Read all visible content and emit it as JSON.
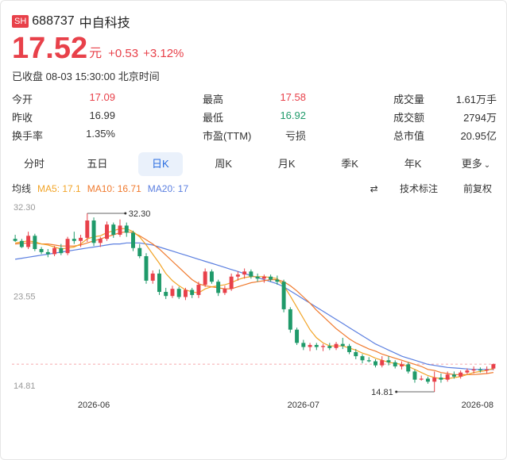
{
  "header": {
    "market_badge": "SH",
    "code": "688737",
    "name": "中自科技"
  },
  "quote": {
    "price": "17.52",
    "unit": "元",
    "change": "+0.53",
    "change_pct": "+3.12%",
    "status": "已收盘 08-03 15:30:00 北京时间"
  },
  "stats": [
    [
      {
        "label": "今开",
        "value": "17.09",
        "color": "red"
      },
      {
        "label": "最高",
        "value": "17.58",
        "color": "red"
      },
      {
        "label": "成交量",
        "value": "1.61万手",
        "color": ""
      }
    ],
    [
      {
        "label": "昨收",
        "value": "16.99",
        "color": ""
      },
      {
        "label": "最低",
        "value": "16.92",
        "color": "green"
      },
      {
        "label": "成交额",
        "value": "2794万",
        "color": ""
      }
    ],
    [
      {
        "label": "换手率",
        "value": "1.35%",
        "color": ""
      },
      {
        "label": "市盈(TTM)",
        "value": "亏损",
        "color": ""
      },
      {
        "label": "总市值",
        "value": "20.95亿",
        "color": ""
      }
    ]
  ],
  "tabs": [
    "分时",
    "五日",
    "日K",
    "周K",
    "月K",
    "季K",
    "年K",
    "更多"
  ],
  "active_tab": "日K",
  "ma": {
    "title": "均线",
    "ma5": "MA5: 17.1",
    "ma10": "MA10: 16.71",
    "ma20": "MA20: 17",
    "indicator": "技术标注",
    "adjust": "前复权"
  },
  "colors": {
    "up": "#e8414a",
    "down": "#1f9a6a",
    "ma5": "#f2a427",
    "ma10": "#f07a2e",
    "ma20": "#5b7fe0"
  },
  "chart_data": {
    "type": "candlestick",
    "y_ticks": [
      "32.30",
      "23.55",
      "14.81"
    ],
    "x_ticks": [
      "2026-06",
      "2026-07",
      "2026-08"
    ],
    "annotations": {
      "high_label": "32.30",
      "low_label": "14.81",
      "last_close": 17.52
    },
    "candles": [
      [
        29.8,
        30.2,
        29.5,
        29.6
      ],
      [
        29.6,
        29.8,
        28.9,
        29.0
      ],
      [
        29.0,
        30.5,
        28.8,
        30.1
      ],
      [
        30.1,
        30.3,
        28.6,
        28.8
      ],
      [
        28.8,
        29.0,
        28.3,
        28.5
      ],
      [
        28.5,
        28.8,
        28.0,
        28.3
      ],
      [
        28.3,
        29.1,
        28.1,
        28.9
      ],
      [
        28.9,
        29.3,
        28.2,
        28.4
      ],
      [
        28.4,
        30.0,
        28.2,
        29.8
      ],
      [
        29.8,
        30.5,
        29.3,
        29.6
      ],
      [
        29.6,
        30.2,
        29.0,
        29.9
      ],
      [
        29.9,
        32.3,
        29.5,
        31.6
      ],
      [
        31.6,
        31.9,
        29.1,
        29.4
      ],
      [
        29.4,
        30.0,
        29.0,
        29.8
      ],
      [
        29.8,
        31.5,
        29.6,
        31.2
      ],
      [
        31.2,
        31.4,
        29.9,
        30.2
      ],
      [
        30.2,
        31.7,
        30.0,
        31.1
      ],
      [
        31.1,
        31.4,
        30.0,
        30.4
      ],
      [
        30.4,
        30.6,
        28.6,
        28.9
      ],
      [
        28.9,
        29.3,
        27.9,
        28.1
      ],
      [
        28.1,
        28.4,
        25.4,
        25.7
      ],
      [
        25.7,
        26.7,
        25.4,
        26.4
      ],
      [
        26.4,
        26.8,
        24.3,
        24.6
      ],
      [
        24.6,
        25.0,
        23.9,
        24.2
      ],
      [
        24.2,
        25.2,
        24.0,
        24.9
      ],
      [
        24.9,
        25.1,
        23.9,
        24.1
      ],
      [
        24.1,
        25.0,
        23.8,
        24.8
      ],
      [
        24.8,
        25.0,
        24.0,
        24.3
      ],
      [
        24.3,
        25.6,
        24.0,
        25.3
      ],
      [
        25.3,
        26.9,
        25.1,
        26.6
      ],
      [
        26.6,
        26.8,
        25.4,
        25.6
      ],
      [
        25.6,
        25.8,
        24.2,
        24.5
      ],
      [
        24.5,
        25.2,
        24.3,
        24.9
      ],
      [
        24.9,
        26.4,
        24.7,
        26.1
      ],
      [
        26.1,
        26.6,
        25.7,
        26.3
      ],
      [
        26.3,
        26.9,
        25.9,
        26.6
      ],
      [
        26.6,
        26.8,
        25.9,
        26.1
      ],
      [
        26.1,
        26.4,
        25.6,
        25.9
      ],
      [
        25.9,
        26.3,
        25.5,
        26.1
      ],
      [
        26.1,
        26.3,
        25.6,
        25.8
      ],
      [
        25.8,
        26.2,
        25.3,
        25.6
      ],
      [
        25.6,
        25.8,
        22.6,
        22.9
      ],
      [
        22.9,
        23.1,
        20.6,
        20.9
      ],
      [
        20.9,
        21.1,
        19.4,
        19.6
      ],
      [
        19.6,
        19.9,
        18.9,
        19.2
      ],
      [
        19.2,
        19.6,
        18.8,
        19.4
      ],
      [
        19.4,
        19.6,
        18.9,
        19.2
      ],
      [
        19.2,
        19.5,
        18.8,
        19.3
      ],
      [
        19.3,
        19.6,
        18.9,
        19.1
      ],
      [
        19.1,
        19.7,
        18.9,
        19.5
      ],
      [
        19.5,
        20.1,
        19.0,
        19.3
      ],
      [
        19.3,
        19.5,
        18.5,
        18.7
      ],
      [
        18.7,
        19.0,
        18.0,
        18.3
      ],
      [
        18.3,
        18.5,
        17.6,
        17.9
      ],
      [
        17.9,
        18.2,
        17.7,
        17.8
      ],
      [
        17.8,
        18.0,
        17.2,
        17.4
      ],
      [
        17.4,
        18.3,
        17.2,
        17.9
      ],
      [
        17.9,
        18.3,
        17.4,
        17.7
      ],
      [
        17.7,
        17.9,
        17.1,
        17.3
      ],
      [
        17.3,
        17.8,
        17.0,
        17.5
      ],
      [
        17.5,
        17.7,
        16.6,
        16.8
      ],
      [
        16.8,
        17.0,
        15.7,
        16.0
      ],
      [
        16.0,
        16.4,
        15.9,
        16.1
      ],
      [
        16.1,
        16.3,
        15.6,
        15.8
      ],
      [
        15.8,
        16.8,
        14.81,
        16.2
      ],
      [
        16.2,
        16.6,
        15.7,
        16.0
      ],
      [
        16.0,
        16.8,
        15.8,
        16.5
      ],
      [
        16.5,
        16.8,
        16.1,
        16.3
      ],
      [
        16.3,
        16.9,
        16.1,
        16.7
      ],
      [
        16.7,
        17.1,
        16.5,
        16.9
      ],
      [
        16.9,
        17.3,
        16.6,
        17.0
      ],
      [
        17.0,
        17.2,
        16.7,
        16.9
      ],
      [
        16.9,
        17.3,
        16.6,
        16.99
      ],
      [
        17.09,
        17.58,
        16.92,
        17.52
      ]
    ],
    "ma5": [
      29.4,
      29.5,
      29.6,
      29.5,
      29.3,
      29.2,
      29.0,
      28.8,
      28.9,
      29.0,
      29.3,
      29.8,
      30.0,
      30.1,
      30.4,
      30.6,
      30.8,
      30.8,
      30.5,
      30.0,
      29.2,
      28.3,
      27.4,
      26.4,
      25.7,
      25.2,
      24.8,
      24.6,
      24.5,
      24.9,
      25.1,
      25.2,
      25.3,
      25.5,
      25.8,
      26.0,
      26.1,
      26.1,
      26.1,
      26.0,
      25.9,
      25.2,
      24.2,
      23.1,
      22.0,
      20.9,
      20.1,
      19.6,
      19.3,
      19.3,
      19.3,
      19.1,
      18.9,
      18.6,
      18.4,
      18.1,
      17.9,
      17.7,
      17.6,
      17.5,
      17.3,
      17.0,
      16.7,
      16.4,
      16.2,
      16.1,
      16.1,
      16.2,
      16.3,
      16.5,
      16.7,
      16.8,
      16.9,
      17.1
    ],
    "ma10": [
      29.3,
      29.35,
      29.4,
      29.4,
      29.3,
      29.3,
      29.2,
      29.1,
      29.1,
      29.1,
      29.2,
      29.4,
      29.6,
      29.8,
      30.0,
      30.2,
      30.4,
      30.5,
      30.4,
      30.1,
      29.7,
      29.3,
      28.8,
      28.2,
      27.6,
      27.0,
      26.4,
      25.8,
      25.4,
      25.2,
      25.1,
      25.0,
      24.9,
      24.9,
      25.1,
      25.3,
      25.5,
      25.6,
      25.7,
      25.8,
      25.8,
      25.6,
      25.2,
      24.7,
      24.1,
      23.5,
      22.8,
      22.2,
      21.6,
      21.0,
      20.5,
      20.0,
      19.6,
      19.3,
      19.0,
      18.8,
      18.5,
      18.3,
      18.1,
      17.9,
      17.7,
      17.5,
      17.3,
      17.0,
      16.9,
      16.7,
      16.6,
      16.5,
      16.5,
      16.5,
      16.5,
      16.55,
      16.6,
      16.71
    ],
    "ma20": [
      27.8,
      27.9,
      28.0,
      28.1,
      28.2,
      28.3,
      28.4,
      28.5,
      28.6,
      28.7,
      28.8,
      28.9,
      29.0,
      29.1,
      29.2,
      29.3,
      29.3,
      29.4,
      29.4,
      29.4,
      29.3,
      29.2,
      29.0,
      28.8,
      28.6,
      28.4,
      28.2,
      28.0,
      27.8,
      27.6,
      27.4,
      27.2,
      27.0,
      26.8,
      26.6,
      26.4,
      26.2,
      26.0,
      25.8,
      25.6,
      25.4,
      25.1,
      24.7,
      24.3,
      23.9,
      23.5,
      23.1,
      22.7,
      22.3,
      21.9,
      21.5,
      21.1,
      20.7,
      20.3,
      19.9,
      19.5,
      19.2,
      18.9,
      18.6,
      18.3,
      18.1,
      17.9,
      17.7,
      17.5,
      17.4,
      17.3,
      17.2,
      17.15,
      17.1,
      17.05,
      17.0,
      17.0,
      17.0,
      17.0
    ]
  }
}
